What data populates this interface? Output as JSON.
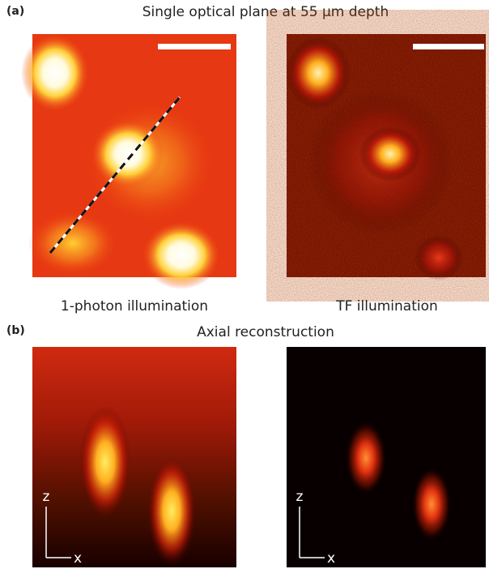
{
  "figure": {
    "panel_a": {
      "label": "(a)",
      "title": "Single optical plane at 55 μm depth",
      "left_caption": "1-photon illumination",
      "right_caption": "TF illumination"
    },
    "panel_b": {
      "label": "(b)",
      "title": "Axial reconstruction"
    },
    "axes": {
      "vertical": "z",
      "horizontal": "x"
    }
  }
}
